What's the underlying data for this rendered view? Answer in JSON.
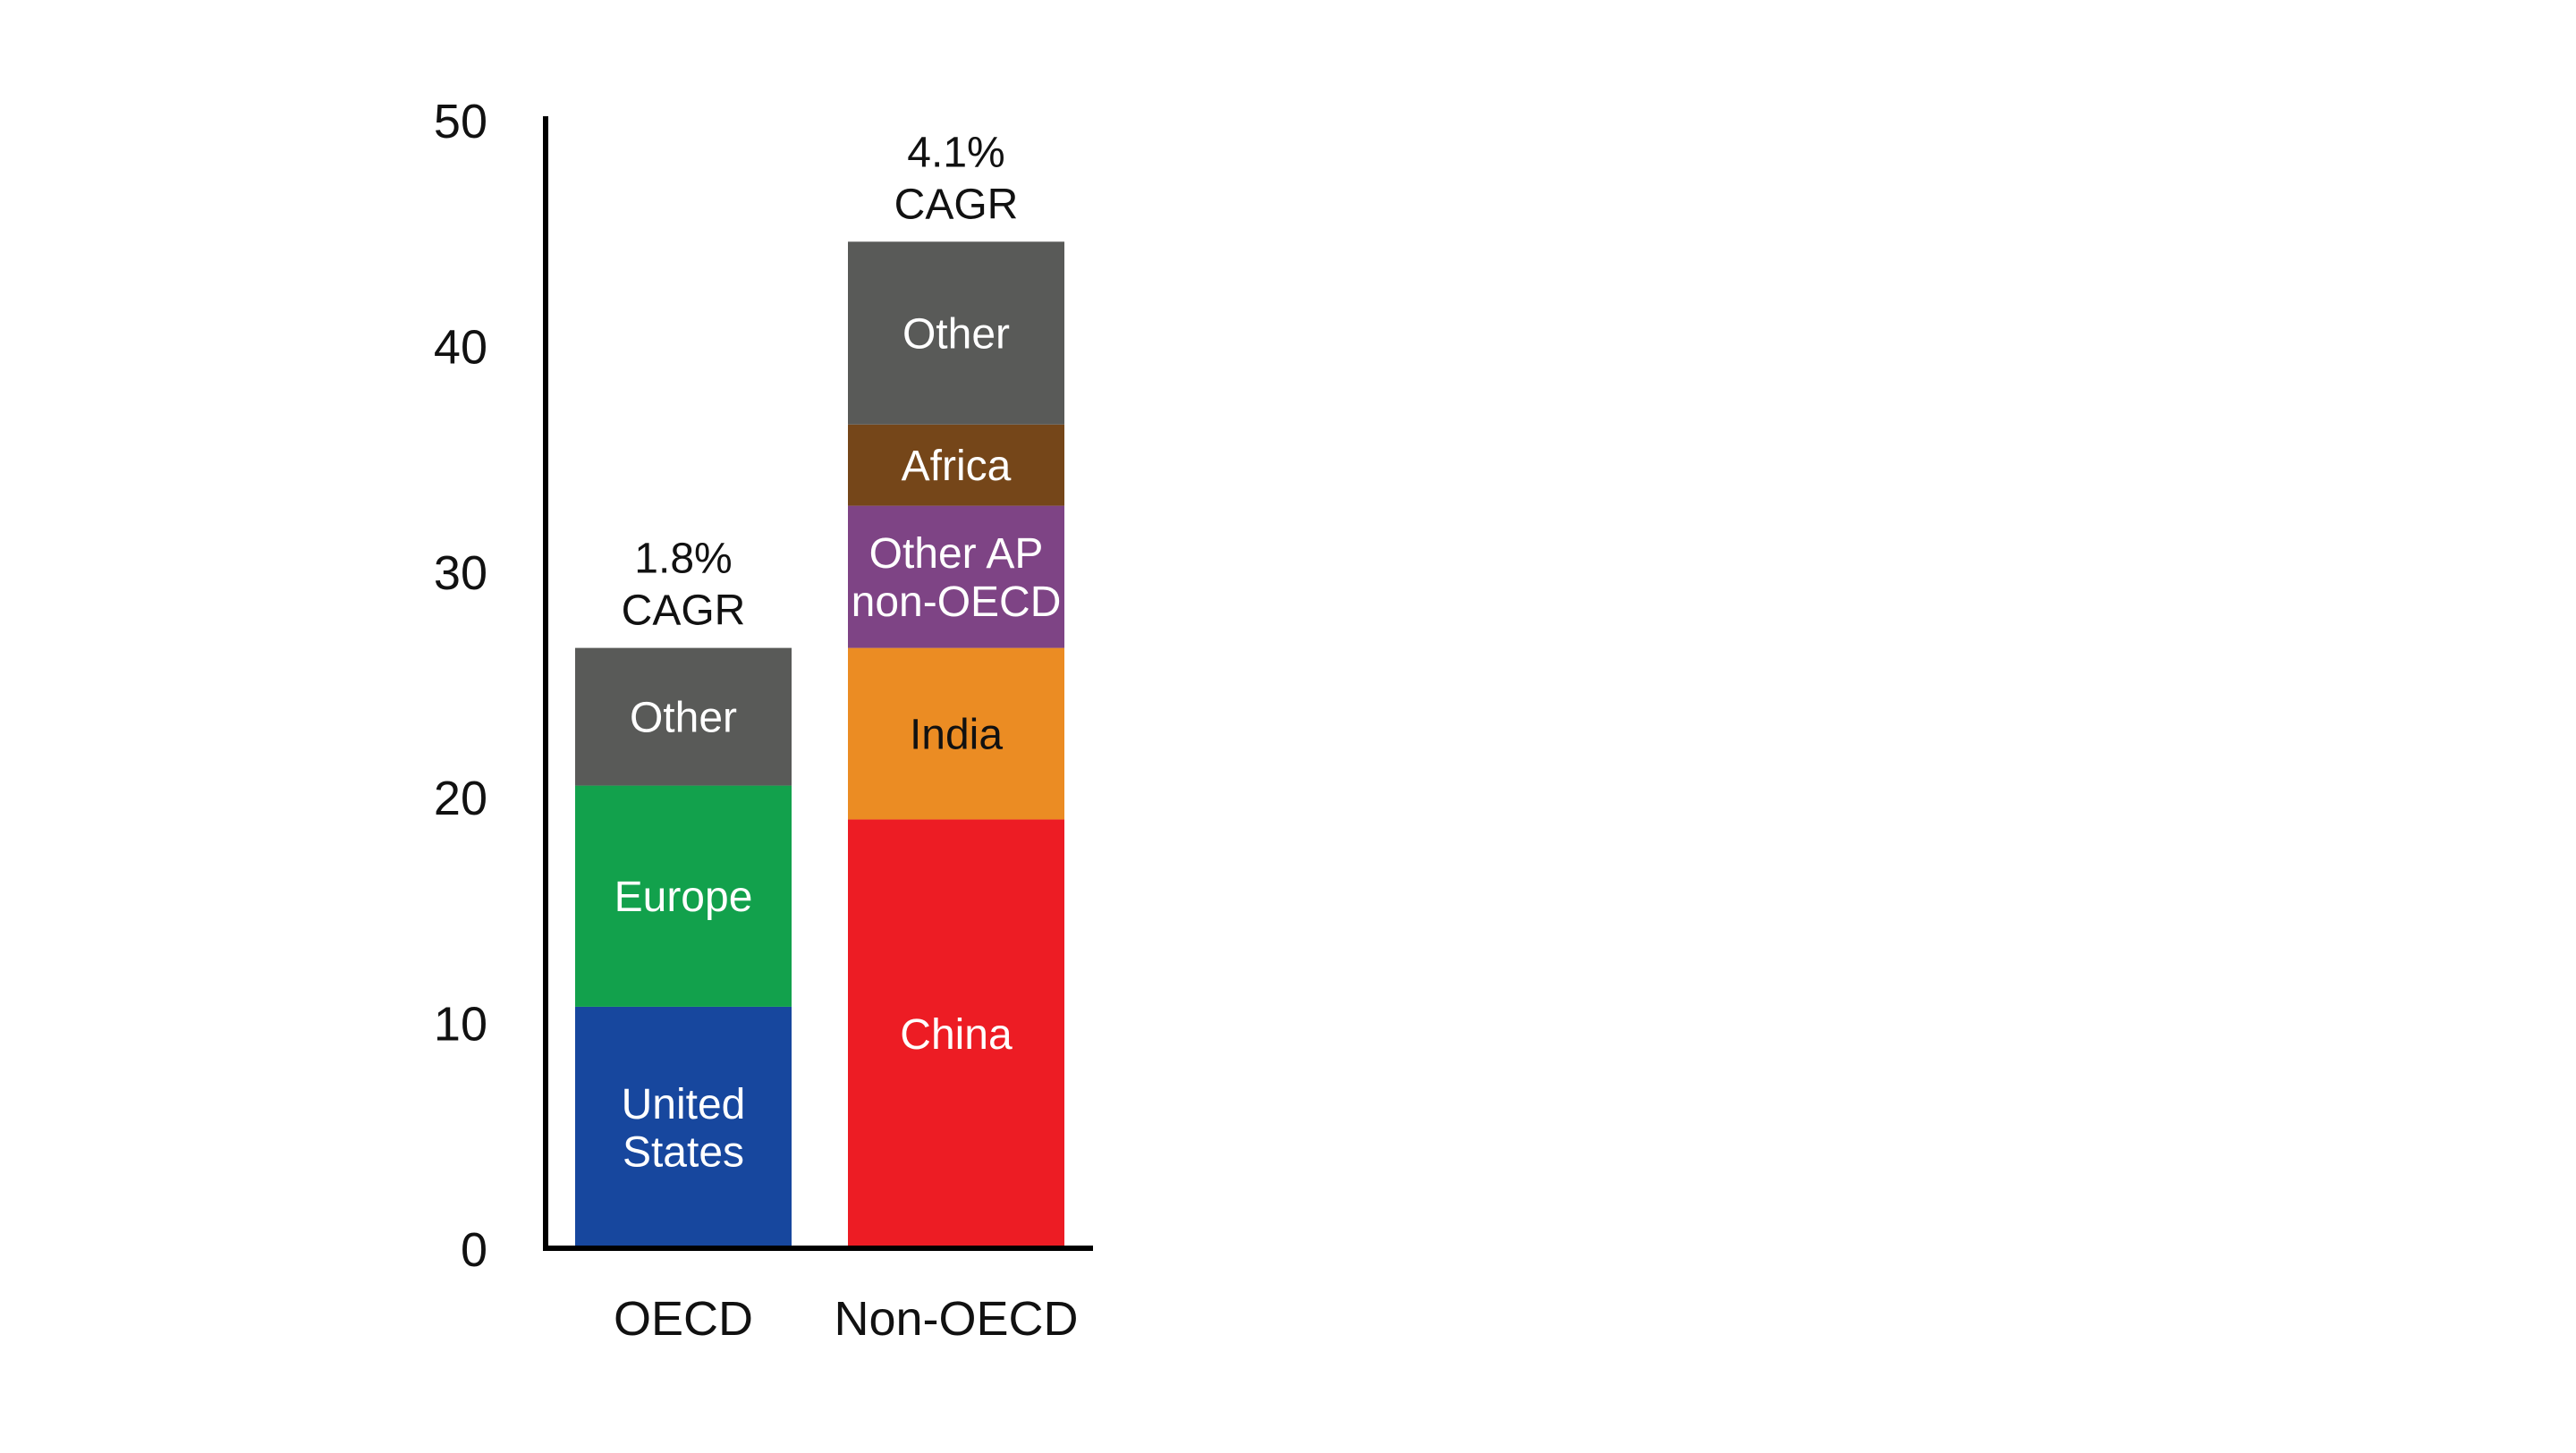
{
  "chart_data": {
    "type": "bar",
    "stacked": true,
    "title": "",
    "xlabel": "",
    "ylabel": "",
    "ylim": [
      0,
      50
    ],
    "yticks": [
      0,
      10,
      20,
      30,
      40,
      50
    ],
    "grid": false,
    "legend": "none",
    "categories": [
      "OECD",
      "Non-OECD"
    ],
    "bars": [
      {
        "category": "OECD",
        "total_label_line1": "1.8%",
        "total_label_line2": "CAGR",
        "segments": [
          {
            "label_lines": [
              "United",
              "States"
            ],
            "value": 10.7,
            "color": "#17479e",
            "text_color": "#ffffff"
          },
          {
            "label_lines": [
              "Europe"
            ],
            "value": 9.8,
            "color": "#12a14c",
            "text_color": "#ffffff"
          },
          {
            "label_lines": [
              "Other"
            ],
            "value": 6.1,
            "color": "#595a58",
            "text_color": "#ffffff"
          }
        ]
      },
      {
        "category": "Non-OECD",
        "total_label_line1": "4.1%",
        "total_label_line2": "CAGR",
        "segments": [
          {
            "label_lines": [
              "China"
            ],
            "value": 19.0,
            "color": "#ed1c24",
            "text_color": "#ffffff"
          },
          {
            "label_lines": [
              "India"
            ],
            "value": 7.6,
            "color": "#eb8c23",
            "text_color": "#111111"
          },
          {
            "label_lines": [
              "Other AP",
              "non-OECD"
            ],
            "value": 6.3,
            "color": "#7e4485",
            "text_color": "#ffffff"
          },
          {
            "label_lines": [
              "Africa"
            ],
            "value": 3.6,
            "color": "#754619",
            "text_color": "#ffffff"
          },
          {
            "label_lines": [
              "Other"
            ],
            "value": 8.1,
            "color": "#595a58",
            "text_color": "#ffffff"
          }
        ]
      }
    ]
  }
}
